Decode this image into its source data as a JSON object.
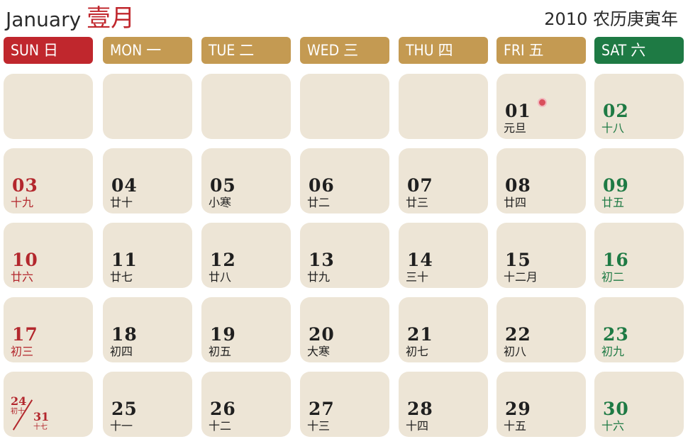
{
  "header": {
    "month_en": "January",
    "month_cn": "壹月",
    "year_line": "2010 农历庚寅年"
  },
  "weekdays": [
    {
      "label": "SUN 日",
      "kind": "sun"
    },
    {
      "label": "MON 一",
      "kind": "weekday"
    },
    {
      "label": "TUE 二",
      "kind": "weekday"
    },
    {
      "label": "WED 三",
      "kind": "weekday"
    },
    {
      "label": "THU 四",
      "kind": "weekday"
    },
    {
      "label": "FRI 五",
      "kind": "weekday"
    },
    {
      "label": "SAT 六",
      "kind": "sat"
    }
  ],
  "colors": {
    "sunday": "#c0272d",
    "saturday": "#1e7a44",
    "weekday_header": "#c49a52",
    "cell_bg": "#ede5d6"
  },
  "weeks": [
    [
      {
        "day": "",
        "lunar": ""
      },
      {
        "day": "",
        "lunar": ""
      },
      {
        "day": "",
        "lunar": ""
      },
      {
        "day": "",
        "lunar": ""
      },
      {
        "day": "",
        "lunar": ""
      },
      {
        "day": "01",
        "lunar": "元旦",
        "holiday": true
      },
      {
        "day": "02",
        "lunar": "十八"
      }
    ],
    [
      {
        "day": "03",
        "lunar": "十九"
      },
      {
        "day": "04",
        "lunar": "廿十"
      },
      {
        "day": "05",
        "lunar": "小寒"
      },
      {
        "day": "06",
        "lunar": "廿二"
      },
      {
        "day": "07",
        "lunar": "廿三"
      },
      {
        "day": "08",
        "lunar": "廿四"
      },
      {
        "day": "09",
        "lunar": "廿五"
      }
    ],
    [
      {
        "day": "10",
        "lunar": "廿六"
      },
      {
        "day": "11",
        "lunar": "廿七"
      },
      {
        "day": "12",
        "lunar": "廿八"
      },
      {
        "day": "13",
        "lunar": "廿九"
      },
      {
        "day": "14",
        "lunar": "三十"
      },
      {
        "day": "15",
        "lunar": "十二月"
      },
      {
        "day": "16",
        "lunar": "初二"
      }
    ],
    [
      {
        "day": "17",
        "lunar": "初三"
      },
      {
        "day": "18",
        "lunar": "初四"
      },
      {
        "day": "19",
        "lunar": "初五"
      },
      {
        "day": "20",
        "lunar": "大寒"
      },
      {
        "day": "21",
        "lunar": "初七"
      },
      {
        "day": "22",
        "lunar": "初八"
      },
      {
        "day": "23",
        "lunar": "初九"
      }
    ],
    [
      {
        "split": true,
        "day_top": "24",
        "lunar_top": "初十",
        "day_bottom": "31",
        "lunar_bottom": "十七"
      },
      {
        "day": "25",
        "lunar": "十一"
      },
      {
        "day": "26",
        "lunar": "十二"
      },
      {
        "day": "27",
        "lunar": "十三"
      },
      {
        "day": "28",
        "lunar": "十四"
      },
      {
        "day": "29",
        "lunar": "十五"
      },
      {
        "day": "30",
        "lunar": "十六"
      }
    ]
  ]
}
